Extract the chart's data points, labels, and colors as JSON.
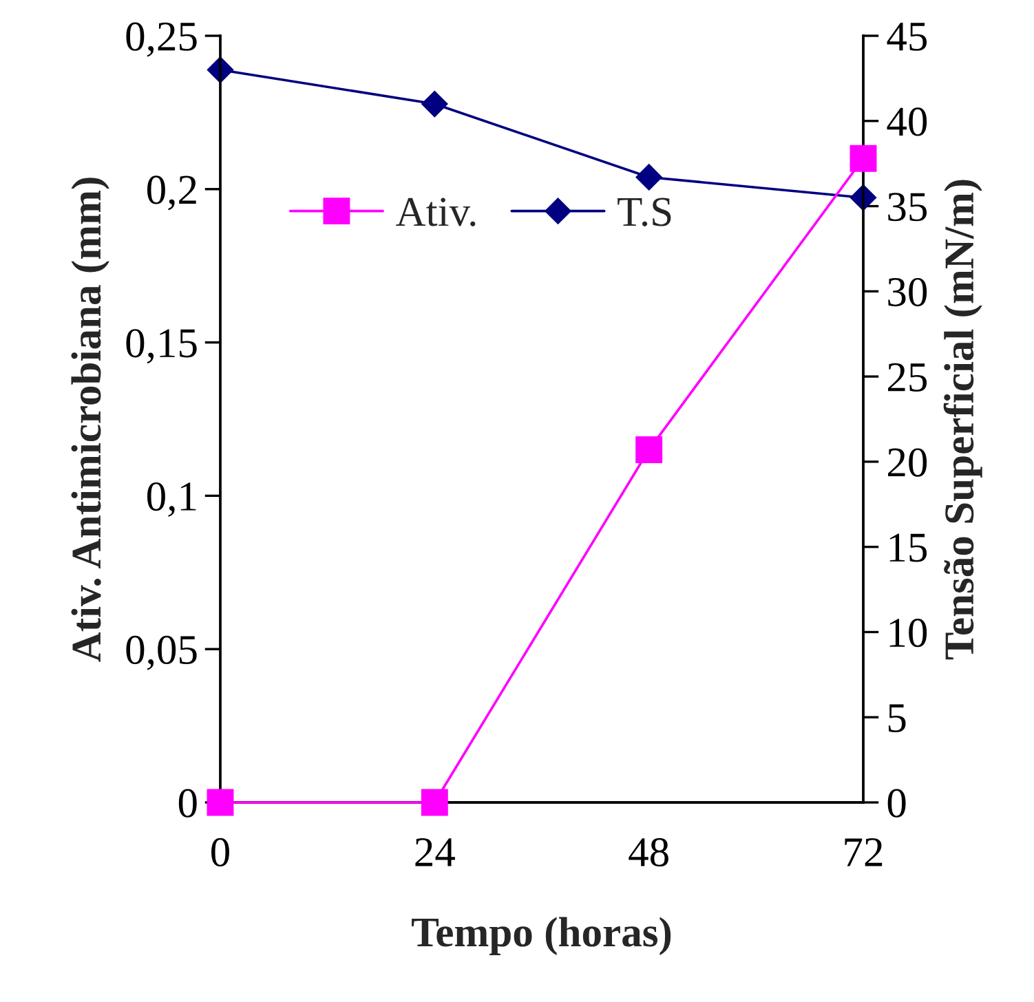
{
  "chart_data": {
    "type": "line",
    "xlabel": "Tempo (horas)",
    "ylabel": "Ativ. Antimicrobiana (mm)",
    "y2label": "Tensão Superficial (mN/m)",
    "x": [
      0,
      24,
      48,
      72
    ],
    "series": [
      {
        "name": "Ativ.",
        "color": "#ff00ff",
        "values": [
          0,
          0,
          0.115,
          0.21
        ],
        "marker": "square"
      },
      {
        "name": "T.S",
        "color": "#000080",
        "values": [
          43,
          41,
          36.7,
          35.5
        ],
        "marker": "diamond",
        "axis": "y2"
      }
    ],
    "xlim": [
      0,
      72
    ],
    "xticks": [
      0,
      24,
      48,
      72
    ],
    "ylim": [
      0,
      0.25
    ],
    "yticks": [
      {
        "value": 0,
        "label": "0"
      },
      {
        "value": 0.05,
        "label": "0,05"
      },
      {
        "value": 0.1,
        "label": "0,1"
      },
      {
        "value": 0.15,
        "label": "0,15"
      },
      {
        "value": 0.2,
        "label": "0,2"
      },
      {
        "value": 0.25,
        "label": "0,25"
      }
    ],
    "y2lim": [
      0,
      45
    ],
    "y2ticks": [
      0,
      5,
      10,
      15,
      20,
      25,
      30,
      35,
      40,
      45
    ],
    "legend": "top left",
    "grid": false,
    "line_style": "solid"
  }
}
